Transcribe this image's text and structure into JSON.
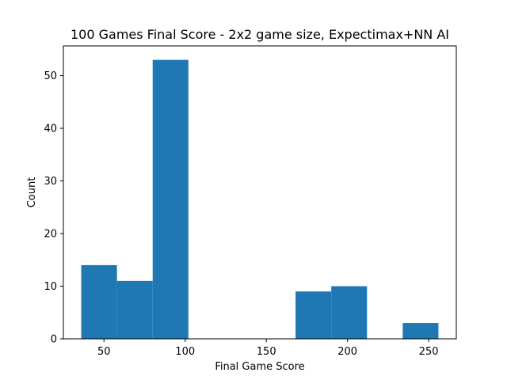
{
  "chart_data": {
    "type": "bar",
    "title": "100 Games Final Score - 2x2 game size, Expectimax+NN AI",
    "xlabel": "Final Game Score",
    "ylabel": "Count",
    "bins": [
      {
        "x0": 36,
        "x1": 58,
        "value": 14
      },
      {
        "x0": 58,
        "x1": 80,
        "value": 11
      },
      {
        "x0": 80,
        "x1": 102,
        "value": 53
      },
      {
        "x0": 102,
        "x1": 124,
        "value": 0
      },
      {
        "x0": 124,
        "x1": 146,
        "value": 0
      },
      {
        "x0": 146,
        "x1": 168,
        "value": 0
      },
      {
        "x0": 168,
        "x1": 190,
        "value": 9
      },
      {
        "x0": 190,
        "x1": 212,
        "value": 10
      },
      {
        "x0": 212,
        "x1": 234,
        "value": 0
      },
      {
        "x0": 234,
        "x1": 256,
        "value": 3
      }
    ],
    "xlim": [
      25,
      267
    ],
    "ylim": [
      0,
      55.65
    ],
    "xticks": [
      50,
      100,
      150,
      200,
      250
    ],
    "yticks": [
      0,
      10,
      20,
      30,
      40,
      50
    ],
    "bar_color": "#1f77b4",
    "grid": false,
    "legend": "none"
  }
}
